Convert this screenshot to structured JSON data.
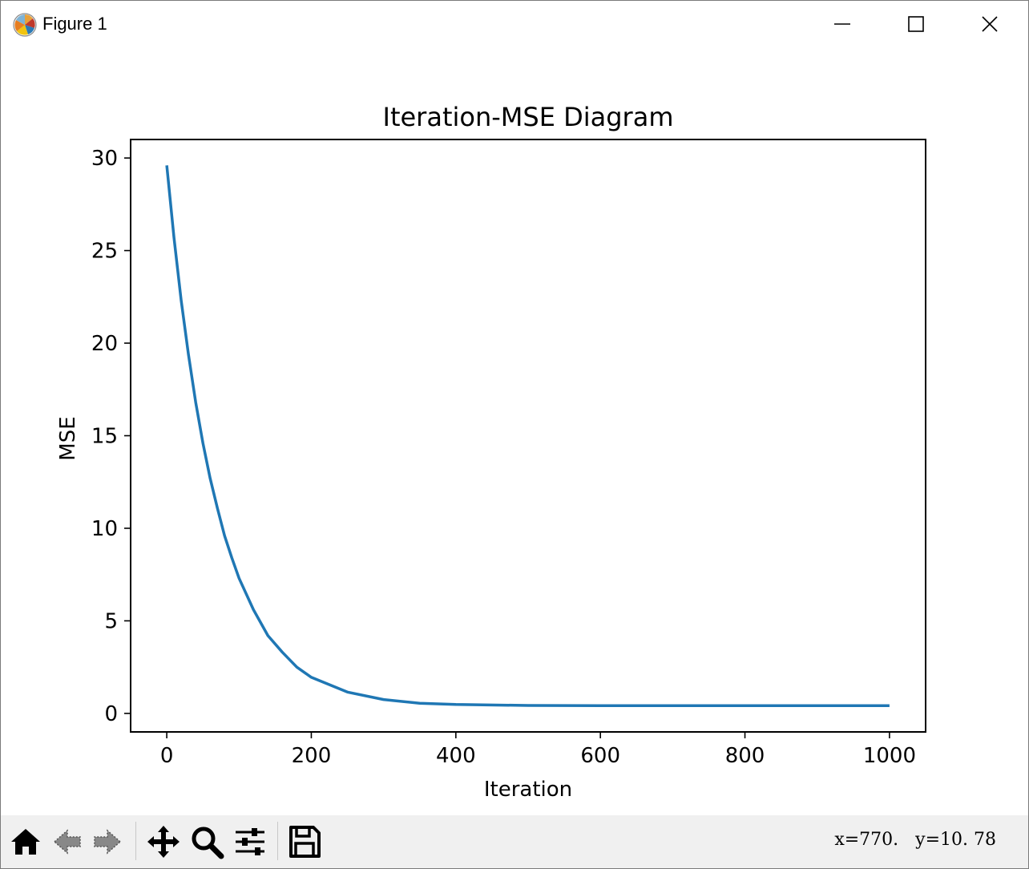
{
  "window": {
    "title": "Figure 1",
    "icon": "matplotlib-logo-icon",
    "controls": [
      "minimize-icon",
      "maximize-icon",
      "close-icon"
    ]
  },
  "chart_data": {
    "type": "line",
    "title": "Iteration-MSE Diagram",
    "xlabel": "Iteration",
    "ylabel": "MSE",
    "xlim": [
      -50,
      1050
    ],
    "ylim": [
      -1.0,
      31.0
    ],
    "xticks": [
      0,
      200,
      400,
      600,
      800,
      1000
    ],
    "yticks": [
      0,
      5,
      10,
      15,
      20,
      25,
      30
    ],
    "grid": false,
    "color": "#1f77b4",
    "series": [
      {
        "x": [
          0,
          10,
          20,
          30,
          40,
          50,
          60,
          70,
          80,
          90,
          100,
          120,
          140,
          160,
          180,
          200,
          250,
          300,
          350,
          400,
          500,
          600,
          700,
          800,
          900,
          1000
        ],
        "y": [
          29.6,
          25.7,
          22.3,
          19.4,
          16.8,
          14.6,
          12.7,
          11.1,
          9.6,
          8.4,
          7.3,
          5.6,
          4.2,
          3.3,
          2.5,
          1.95,
          1.15,
          0.75,
          0.55,
          0.48,
          0.43,
          0.42,
          0.42,
          0.42,
          0.42,
          0.42
        ]
      }
    ]
  },
  "toolbar": {
    "tools": [
      "home-icon",
      "back-arrow-icon",
      "forward-arrow-icon",
      "pan-icon",
      "zoom-icon",
      "configure-subplots-icon",
      "save-icon"
    ],
    "coords_text": "x=770.   y=10. 78"
  }
}
